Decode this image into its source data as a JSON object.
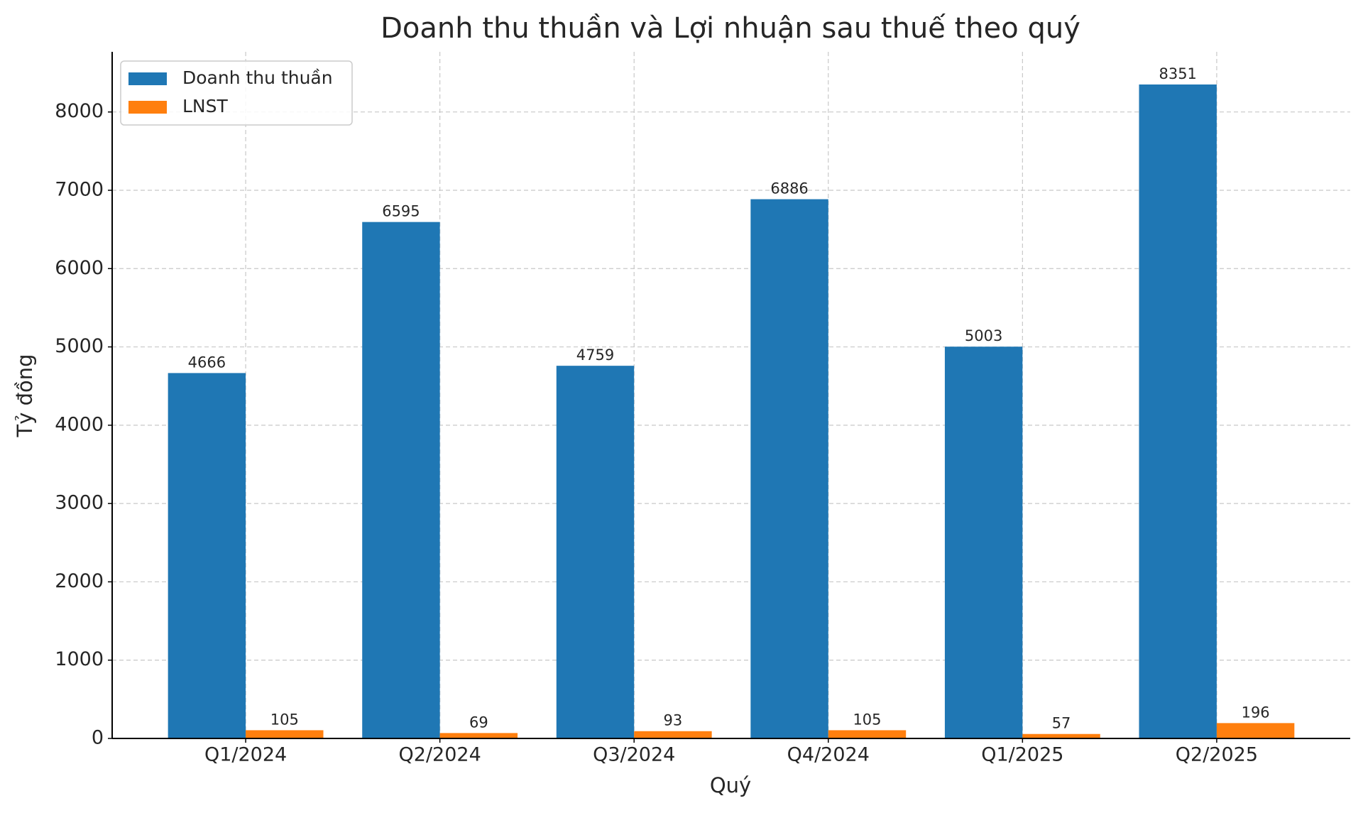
{
  "chart_data": {
    "type": "bar",
    "title": "Doanh thu thuần và Lợi nhuận sau thuế theo quý",
    "x_label": "Quý",
    "y_label": "Tỷ đồng",
    "categories": [
      "Q1/2024",
      "Q2/2024",
      "Q3/2024",
      "Q4/2024",
      "Q1/2025",
      "Q2/2025"
    ],
    "series": [
      {
        "name": "Doanh thu thuần",
        "color": "#1f77b4",
        "values": [
          4666,
          6595,
          4759,
          6886,
          5003,
          8351
        ]
      },
      {
        "name": "LNST",
        "color": "#ff7f0e",
        "values": [
          105,
          69,
          93,
          105,
          57,
          196
        ]
      }
    ],
    "ylim": [
      0,
      8768
    ],
    "yticks": [
      0,
      1000,
      2000,
      3000,
      4000,
      5000,
      6000,
      7000,
      8000
    ],
    "grid": true,
    "legend": "upper left"
  }
}
